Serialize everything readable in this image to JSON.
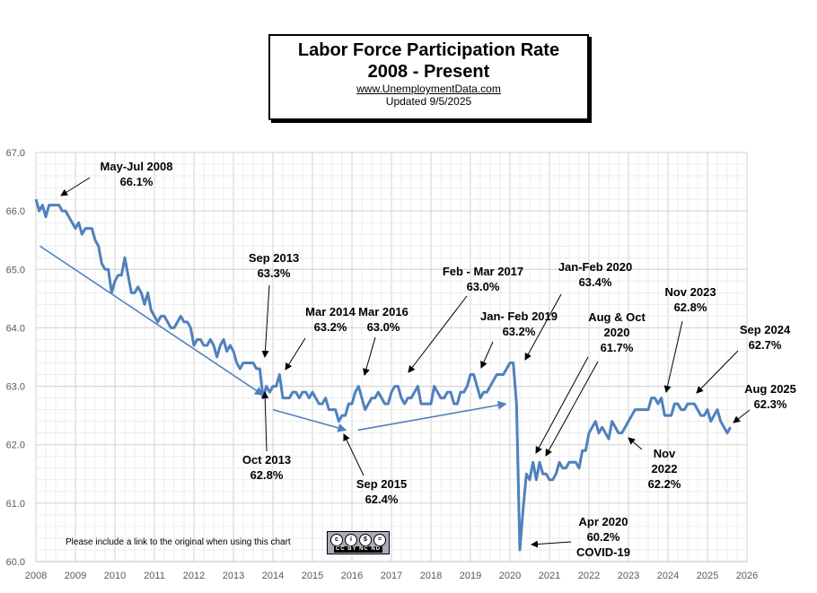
{
  "title": {
    "line1": "Labor Force Participation Rate",
    "line2": "2008 - Present",
    "url": "www.UnemploymentData.com",
    "updated": "Updated  9/5/2025"
  },
  "footer_note": "Please include a link to the original when using this chart",
  "license_badge": "cc by nc nd",
  "colors": {
    "series": "#4f81bd",
    "grid": "#d9d9d9",
    "axis_text": "#595959"
  },
  "chart_data": {
    "type": "line",
    "title": "Labor Force Participation Rate 2008 - Present",
    "xlabel": "",
    "ylabel": "",
    "xlim": [
      2008,
      2026
    ],
    "ylim": [
      60.0,
      67.0
    ],
    "x_ticks": [
      "2008",
      "2009",
      "2010",
      "2011",
      "2012",
      "2013",
      "2014",
      "2015",
      "2016",
      "2017",
      "2018",
      "2019",
      "2020",
      "2021",
      "2022",
      "2023",
      "2024",
      "2025",
      "2026"
    ],
    "y_ticks": [
      "60.0",
      "61.0",
      "62.0",
      "63.0",
      "64.0",
      "65.0",
      "66.0",
      "67.0"
    ],
    "grid": true,
    "x_start": "Jan 2008",
    "frequency": "monthly",
    "values": [
      66.2,
      66.0,
      66.1,
      65.9,
      66.1,
      66.1,
      66.1,
      66.1,
      66.0,
      66.0,
      65.9,
      65.8,
      65.7,
      65.8,
      65.6,
      65.7,
      65.7,
      65.7,
      65.5,
      65.4,
      65.1,
      65.0,
      65.0,
      64.6,
      64.8,
      64.9,
      64.9,
      65.2,
      64.9,
      64.6,
      64.6,
      64.7,
      64.6,
      64.4,
      64.6,
      64.3,
      64.2,
      64.1,
      64.2,
      64.2,
      64.1,
      64.0,
      64.0,
      64.1,
      64.2,
      64.1,
      64.1,
      64.0,
      63.7,
      63.8,
      63.8,
      63.7,
      63.7,
      63.8,
      63.7,
      63.5,
      63.7,
      63.8,
      63.6,
      63.7,
      63.6,
      63.4,
      63.3,
      63.4,
      63.4,
      63.4,
      63.4,
      63.3,
      63.3,
      62.8,
      63.0,
      62.9,
      63.0,
      63.0,
      63.2,
      62.8,
      62.8,
      62.8,
      62.9,
      62.9,
      62.8,
      62.9,
      62.9,
      62.8,
      62.9,
      62.8,
      62.7,
      62.7,
      62.8,
      62.6,
      62.6,
      62.6,
      62.4,
      62.5,
      62.5,
      62.7,
      62.7,
      62.9,
      63.0,
      62.8,
      62.6,
      62.7,
      62.8,
      62.8,
      62.9,
      62.8,
      62.7,
      62.7,
      62.9,
      63.0,
      63.0,
      62.8,
      62.7,
      62.8,
      62.8,
      62.9,
      63.0,
      62.7,
      62.7,
      62.7,
      62.7,
      63.0,
      62.9,
      62.8,
      62.8,
      62.9,
      62.9,
      62.7,
      62.7,
      62.9,
      62.9,
      63.0,
      63.2,
      63.2,
      63.0,
      62.8,
      62.9,
      62.9,
      63.0,
      63.1,
      63.2,
      63.2,
      63.2,
      63.3,
      63.4,
      63.4,
      62.7,
      60.2,
      60.9,
      61.5,
      61.4,
      61.7,
      61.4,
      61.7,
      61.5,
      61.5,
      61.4,
      61.4,
      61.5,
      61.7,
      61.6,
      61.6,
      61.7,
      61.7,
      61.7,
      61.6,
      61.9,
      61.9,
      62.2,
      62.3,
      62.4,
      62.2,
      62.3,
      62.2,
      62.1,
      62.4,
      62.3,
      62.2,
      62.2,
      62.3,
      62.4,
      62.5,
      62.6,
      62.6,
      62.6,
      62.6,
      62.6,
      62.8,
      62.8,
      62.7,
      62.8,
      62.5,
      62.5,
      62.5,
      62.7,
      62.7,
      62.6,
      62.6,
      62.7,
      62.7,
      62.7,
      62.6,
      62.5,
      62.5,
      62.6,
      62.4,
      62.5,
      62.6,
      62.4,
      62.3,
      62.2,
      62.3
    ],
    "trend_lines": [
      {
        "from": [
          2008.1,
          65.4
        ],
        "to": [
          2013.75,
          62.85
        ]
      },
      {
        "from": [
          2014.0,
          62.6
        ],
        "to": [
          2015.85,
          62.25
        ]
      },
      {
        "from": [
          2016.15,
          62.25
        ],
        "to": [
          2019.9,
          62.7
        ]
      }
    ],
    "annotations": [
      {
        "lines": [
          "May-Jul 2008",
          "66.1%"
        ]
      },
      {
        "lines": [
          "Sep 2013",
          "63.3%"
        ]
      },
      {
        "lines": [
          "Oct 2013",
          "62.8%"
        ]
      },
      {
        "lines": [
          "Mar 2014",
          "63.2%"
        ]
      },
      {
        "lines": [
          "Mar 2016",
          "63.0%"
        ]
      },
      {
        "lines": [
          "Feb - Mar 2017",
          "63.0%"
        ]
      },
      {
        "lines": [
          "Jan- Feb 2019",
          "63.2%"
        ]
      },
      {
        "lines": [
          "Jan-Feb 2020",
          "63.4%"
        ]
      },
      {
        "lines": [
          "Aug & Oct",
          "2020",
          "61.7%"
        ]
      },
      {
        "lines": [
          "Nov 2023",
          "62.8%"
        ]
      },
      {
        "lines": [
          "Sep 2024",
          "62.7%"
        ]
      },
      {
        "lines": [
          "Aug 2025",
          "62.3%"
        ]
      },
      {
        "lines": [
          "Nov",
          "2022",
          "62.2%"
        ]
      },
      {
        "lines": [
          "Sep 2015",
          "62.4%"
        ]
      },
      {
        "lines": [
          "Apr 2020",
          "60.2%",
          "COVID-19"
        ]
      }
    ]
  }
}
